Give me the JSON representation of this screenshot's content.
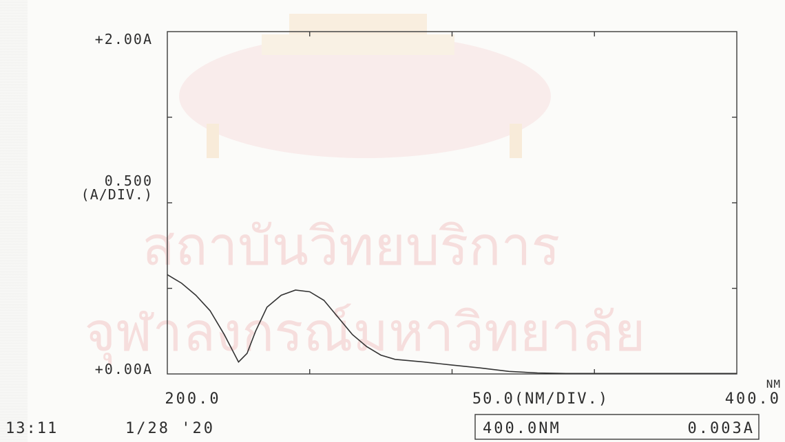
{
  "chart_data": {
    "type": "line",
    "title": "",
    "x_unit_label": "NM",
    "x_div_label": "50.0(NM/DIV.)",
    "y_div_label_value": "0.500",
    "y_div_label_unit": "(A/DIV.)",
    "y_top_label": "+2.00A",
    "y_bottom_label": "+0.00A",
    "x_start_label": "200.0",
    "x_end_label": "400.0",
    "xlim": [
      200,
      400
    ],
    "ylim": [
      0,
      2.0
    ],
    "grid": false,
    "series": [
      {
        "x": [
          200,
          205,
          210,
          215,
          220,
          225,
          228,
          231,
          235,
          240,
          245,
          250,
          255,
          260,
          265,
          270,
          275,
          280,
          290,
          300,
          310,
          320,
          330,
          340,
          350,
          355,
          360,
          370,
          380,
          390,
          400
        ],
        "y": [
          0.58,
          0.53,
          0.46,
          0.37,
          0.23,
          0.07,
          0.12,
          0.25,
          0.39,
          0.46,
          0.49,
          0.48,
          0.43,
          0.33,
          0.23,
          0.16,
          0.11,
          0.085,
          0.07,
          0.052,
          0.035,
          0.015,
          0.006,
          0.003,
          0.003,
          0.003,
          0.003,
          0.003,
          0.003,
          0.003,
          0.003
        ]
      }
    ]
  },
  "footer": {
    "time": "13:11",
    "date": "1/28 '20",
    "cursor_wavelength": "400.0NM",
    "cursor_absorbance": "0.003A"
  },
  "watermark": {
    "line1": "สถาบันวิทยบริการ",
    "line2": "จุฬาลงกรณ์มหาวิทยาลัย"
  }
}
